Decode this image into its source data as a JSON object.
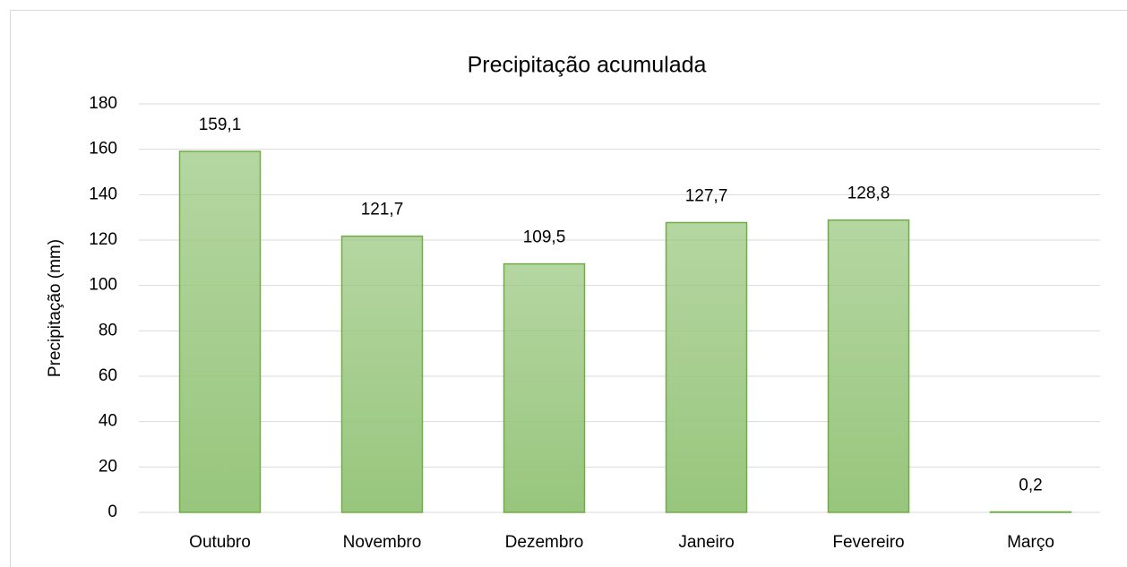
{
  "chart_data": {
    "type": "bar",
    "title": "Precipitação acumulada",
    "y_label": "Precipitação (mm)",
    "categories": [
      "Outubro",
      "Novembro",
      "Dezembro",
      "Janeiro",
      "Fevereiro",
      "Março"
    ],
    "values": [
      159.1,
      121.7,
      109.5,
      127.7,
      128.8,
      0.2
    ],
    "value_labels": [
      "159,1",
      "121,7",
      "109,5",
      "127,7",
      "128,8",
      "0,2"
    ],
    "color": "#98c67d",
    "edge_color": "#70ad47",
    "ylim": [
      0,
      180
    ],
    "yticks": [
      0,
      20,
      40,
      60,
      80,
      100,
      120,
      140,
      160,
      180
    ],
    "grid": true
  }
}
